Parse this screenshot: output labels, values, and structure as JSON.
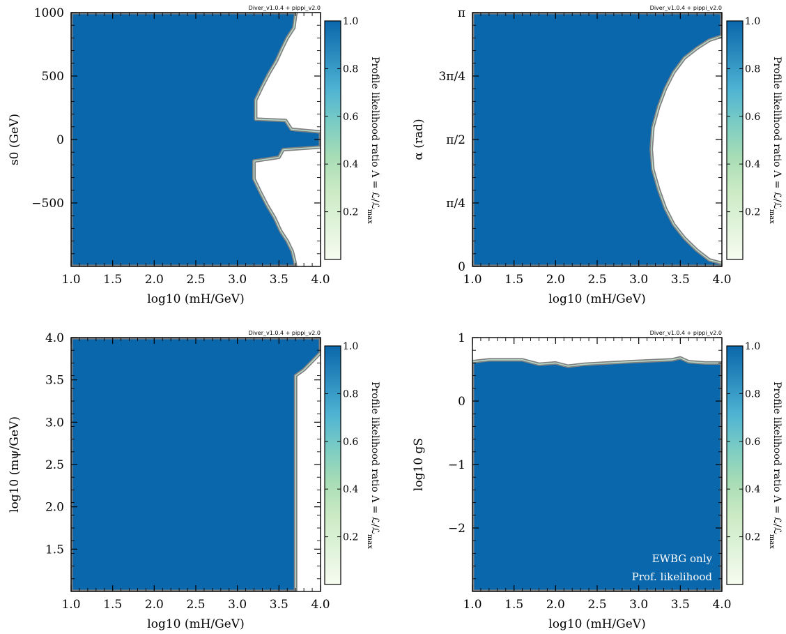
{
  "colors": {
    "region_fill": "#0b67ab",
    "excluded_fill": "#ffffff",
    "contour_outer": "#808080",
    "contour_inner": "#b8d8c8",
    "colormap": [
      "#f7fcf0",
      "#e0f3db",
      "#ccebc5",
      "#a8ddb5",
      "#7bccc4",
      "#4eb3d3",
      "#2b8cbe",
      "#0b67ab"
    ]
  },
  "colorbar": {
    "label": "Profile likelihood ratio Λ = ℒ/ℒ",
    "label_sub": "max",
    "ticks": [
      "0.2",
      "0.4",
      "0.6",
      "0.8",
      "1.0"
    ],
    "tick_values": [
      0.2,
      0.4,
      0.6,
      0.8,
      1.0
    ]
  },
  "credit": "Diver_v1.0.4 + pippi_v2.0",
  "chart_data": [
    {
      "type": "heatmap",
      "xlabel": "log10 (mH/GeV)",
      "ylabel": "s0 (GeV)",
      "xlim": [
        1.0,
        4.0
      ],
      "ylim": [
        -1000,
        1000
      ],
      "x_ticks": [
        "1.0",
        "1.5",
        "2.0",
        "2.5",
        "3.0",
        "3.5",
        "4.0"
      ],
      "y_ticks": [
        "1000",
        "500",
        "0",
        "−500"
      ],
      "y_tick_values": [
        1000,
        500,
        0,
        -500
      ],
      "allowed_value": 1.0,
      "boundary": [
        [
          3.71,
          1000
        ],
        [
          3.7,
          980
        ],
        [
          3.68,
          880
        ],
        [
          3.6,
          800
        ],
        [
          3.54,
          720
        ],
        [
          3.47,
          620
        ],
        [
          3.38,
          520
        ],
        [
          3.3,
          420
        ],
        [
          3.22,
          310
        ],
        [
          3.22,
          160
        ],
        [
          3.58,
          150
        ],
        [
          3.65,
          80
        ],
        [
          4.0,
          60
        ],
        [
          4.0,
          -60
        ],
        [
          3.55,
          -80
        ],
        [
          3.5,
          -140
        ],
        [
          3.2,
          -170
        ],
        [
          3.2,
          -310
        ],
        [
          3.28,
          -420
        ],
        [
          3.36,
          -520
        ],
        [
          3.45,
          -620
        ],
        [
          3.52,
          -720
        ],
        [
          3.6,
          -800
        ],
        [
          3.66,
          -880
        ],
        [
          3.69,
          -960
        ],
        [
          3.7,
          -1000
        ]
      ]
    },
    {
      "type": "heatmap",
      "xlabel": "log10 (mH/GeV)",
      "ylabel": "α (rad)",
      "xlim": [
        1.0,
        4.0
      ],
      "ylim": [
        0,
        3.14159
      ],
      "x_ticks": [
        "1.0",
        "1.5",
        "2.0",
        "2.5",
        "3.0",
        "3.5",
        "4.0"
      ],
      "y_ticks": [
        "π",
        "3π/4",
        "π/2",
        "π/4",
        "0"
      ],
      "y_tick_values": [
        3.14159,
        2.35619,
        1.5708,
        0.7854,
        0
      ],
      "allowed_value": 1.0,
      "boundary": [
        [
          4.0,
          2.85
        ],
        [
          3.85,
          2.8
        ],
        [
          3.7,
          2.7
        ],
        [
          3.55,
          2.58
        ],
        [
          3.42,
          2.4
        ],
        [
          3.32,
          2.2
        ],
        [
          3.24,
          1.98
        ],
        [
          3.17,
          1.72
        ],
        [
          3.15,
          1.45
        ],
        [
          3.17,
          1.2
        ],
        [
          3.24,
          0.95
        ],
        [
          3.32,
          0.72
        ],
        [
          3.42,
          0.52
        ],
        [
          3.55,
          0.35
        ],
        [
          3.7,
          0.2
        ],
        [
          3.85,
          0.08
        ],
        [
          4.0,
          0.04
        ]
      ]
    },
    {
      "type": "heatmap",
      "xlabel": "log10 (mH/GeV)",
      "ylabel": "log10 (mψ/GeV)",
      "xlim": [
        1.0,
        4.0
      ],
      "ylim": [
        1.0,
        4.0
      ],
      "x_ticks": [
        "1.0",
        "1.5",
        "2.0",
        "2.5",
        "3.0",
        "3.5",
        "4.0"
      ],
      "y_ticks": [
        "4.0",
        "3.5",
        "3.0",
        "2.5",
        "2.0",
        "1.5"
      ],
      "y_tick_values": [
        4.0,
        3.5,
        3.0,
        2.5,
        2.0,
        1.5
      ],
      "allowed_value": 1.0,
      "boundary": [
        [
          3.7,
          1.0
        ],
        [
          3.7,
          3.55
        ],
        [
          3.8,
          3.62
        ],
        [
          3.9,
          3.72
        ],
        [
          4.0,
          3.82
        ]
      ]
    },
    {
      "type": "heatmap",
      "xlabel": "log10 (mH/GeV)",
      "ylabel": "log10 gS",
      "xlim": [
        1.0,
        4.0
      ],
      "ylim": [
        -3.0,
        1.0
      ],
      "x_ticks": [
        "1.0",
        "1.5",
        "2.0",
        "2.5",
        "3.0",
        "3.5",
        "4.0"
      ],
      "y_ticks": [
        "1",
        "0",
        "−1",
        "−2"
      ],
      "y_tick_values": [
        1,
        0,
        -1,
        -2
      ],
      "allowed_value": 1.0,
      "annotations": [
        "EWBG only",
        "Prof. likelihood"
      ],
      "boundary": [
        [
          1.0,
          0.62
        ],
        [
          1.2,
          0.65
        ],
        [
          1.6,
          0.65
        ],
        [
          1.8,
          0.58
        ],
        [
          2.0,
          0.6
        ],
        [
          2.15,
          0.55
        ],
        [
          2.35,
          0.58
        ],
        [
          2.9,
          0.62
        ],
        [
          3.4,
          0.65
        ],
        [
          3.5,
          0.68
        ],
        [
          3.6,
          0.62
        ],
        [
          3.8,
          0.6
        ],
        [
          4.0,
          0.6
        ]
      ]
    }
  ]
}
